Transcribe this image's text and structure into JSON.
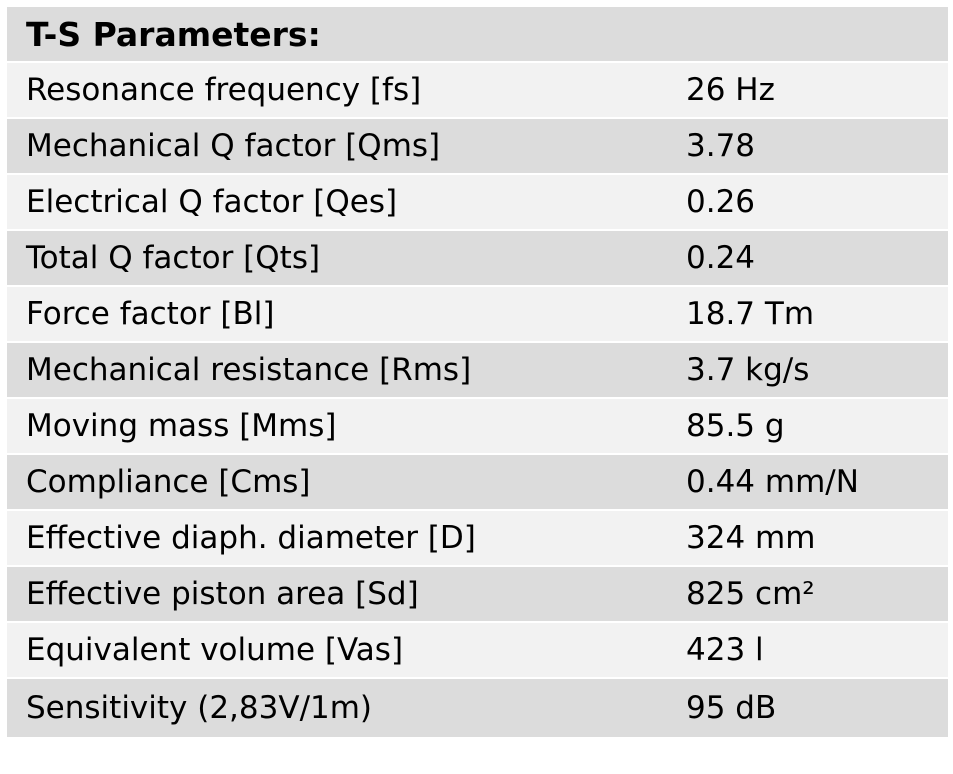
{
  "title": "T-S Parameters:",
  "rows": [
    {
      "label": "Resonance frequency [fs]",
      "value": "26 Hz"
    },
    {
      "label": "Mechanical Q factor [Qms]",
      "value": "3.78"
    },
    {
      "label": "Electrical Q factor [Qes]",
      "value": "0.26"
    },
    {
      "label": "Total Q factor [Qts]",
      "value": "0.24"
    },
    {
      "label": "Force factor [Bl]",
      "value": "18.7 Tm"
    },
    {
      "label": "Mechanical resistance [Rms]",
      "value": "3.7 kg/s"
    },
    {
      "label": "Moving mass [Mms]",
      "value": "85.5 g"
    },
    {
      "label": "Compliance [Cms]",
      "value": "0.44 mm/N"
    },
    {
      "label": "Effective diaph. diameter [D]",
      "value": "324 mm"
    },
    {
      "label": "Effective piston area [Sd]",
      "value": "825 cm²"
    },
    {
      "label": "Equivalent volume [Vas]",
      "value": "423 l"
    },
    {
      "label": "Sensitivity (2,83V/1m)",
      "value": "95 dB"
    }
  ]
}
